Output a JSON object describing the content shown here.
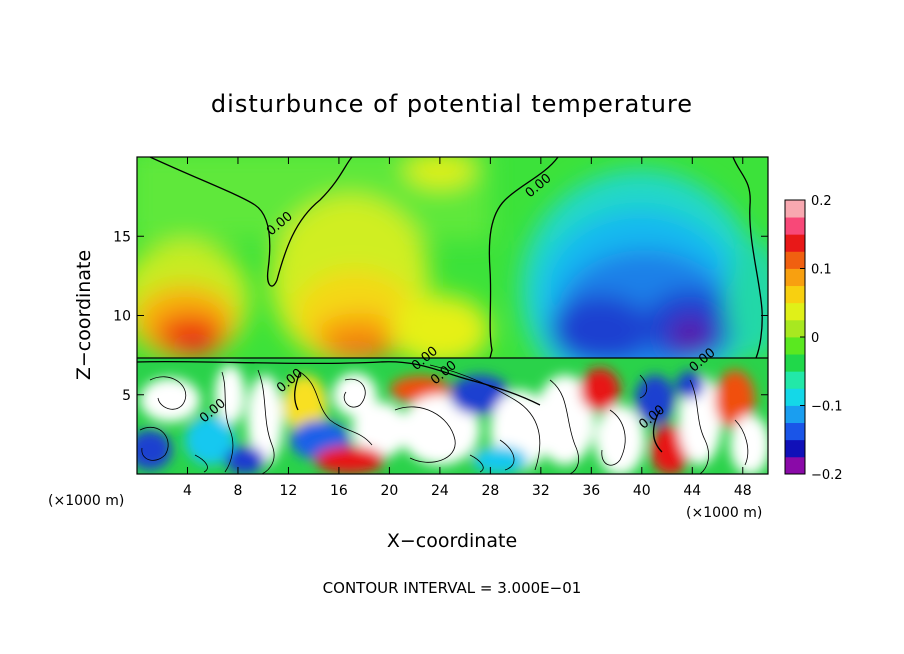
{
  "chart_data": {
    "type": "heatmap",
    "title": "disturbunce of potential temperature",
    "xlabel": "X−coordinate",
    "ylabel": "Z−coordinate",
    "x_unit_left": "(×1000 m)",
    "x_unit_right": "(×1000 m)",
    "footer": "CONTOUR INTERVAL = 3.000E−01",
    "xlim": [
      0,
      50
    ],
    "ylim": [
      0,
      20
    ],
    "x_ticks": [
      4,
      8,
      12,
      16,
      20,
      24,
      28,
      32,
      36,
      40,
      44,
      48
    ],
    "x_tick_labels": [
      "4",
      "8",
      "12",
      "16",
      "20",
      "24",
      "28",
      "32",
      "36",
      "40",
      "44",
      "48"
    ],
    "y_ticks": [
      5,
      10,
      15
    ],
    "y_tick_labels": [
      "5",
      "10",
      "15"
    ],
    "colorbar": {
      "min": -0.2,
      "max": 0.2,
      "ticks": [
        -0.2,
        -0.1,
        0,
        0.1,
        0.2
      ],
      "tick_labels": [
        "−0.2",
        "−0.1",
        "0",
        "0.1",
        "0.2"
      ],
      "colors": [
        "#8a0aa8",
        "#1010b8",
        "#1a55e8",
        "#1a9ef0",
        "#14d8e8",
        "#22e8a8",
        "#20d84a",
        "#5ae820",
        "#a8e820",
        "#e0f018",
        "#f8d010",
        "#f8a010",
        "#f06010",
        "#e81818",
        "#f84878",
        "#f8a8b0"
      ]
    },
    "contour_labels": [
      {
        "text": "0.00",
        "x": 11.5,
        "y": 15.6
      },
      {
        "text": "0.00",
        "x": 32.0,
        "y": 18.0
      },
      {
        "text": "0.00",
        "x": 23.0,
        "y": 7.1
      },
      {
        "text": "0.00",
        "x": 24.5,
        "y": 6.2
      },
      {
        "text": "0.00",
        "x": 12.3,
        "y": 5.7
      },
      {
        "text": "0.00",
        "x": 6.2,
        "y": 3.8
      },
      {
        "text": "0.00",
        "x": 41.0,
        "y": 3.4
      },
      {
        "text": "0.00",
        "x": 45.0,
        "y": 7.0
      }
    ],
    "regions": [
      {
        "name": "warm anomaly (yellow-red)",
        "x_range": [
          0,
          28
        ],
        "z_range": [
          7.5,
          20
        ],
        "value_range": [
          0.0,
          0.14
        ]
      },
      {
        "name": "cold anomaly (blue-purple)",
        "x_range": [
          28,
          50
        ],
        "z_range": [
          7.5,
          20
        ],
        "value_range": [
          -0.18,
          0.0
        ]
      },
      {
        "name": "turbulent layer (saturated, beyond color range)",
        "x_range": [
          0,
          50
        ],
        "z_range": [
          0,
          7.3
        ],
        "value_range": [
          -0.2,
          0.2
        ]
      }
    ]
  }
}
